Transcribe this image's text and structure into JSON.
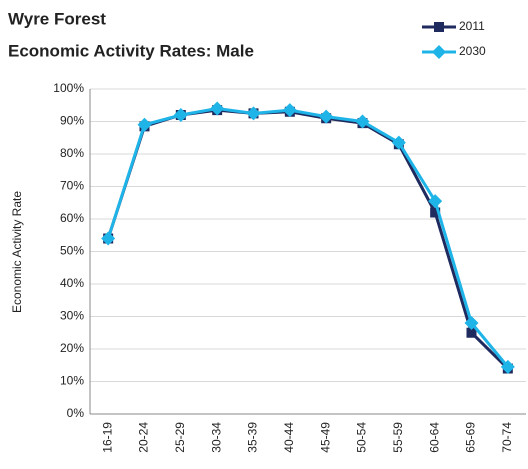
{
  "chart_data": {
    "type": "line",
    "title": "Wyre Forest",
    "subtitle": "Economic Activity Rates: Male",
    "y_label": "Economic Activity Rate",
    "categories": [
      "16-19",
      "20-24",
      "25-29",
      "30-34",
      "35-39",
      "40-44",
      "45-49",
      "50-54",
      "55-59",
      "60-64",
      "65-69",
      "70-74"
    ],
    "series": [
      {
        "name": "2011",
        "color": "#1f2a5e",
        "marker": "square",
        "values": [
          54,
          88.5,
          92,
          93.5,
          92.5,
          93,
          91,
          89.5,
          83,
          62,
          25,
          14
        ]
      },
      {
        "name": "2030",
        "color": "#1fb4e8",
        "marker": "diamond",
        "values": [
          54,
          89,
          92,
          94,
          92.5,
          93.5,
          91.5,
          90,
          83.5,
          65.5,
          28,
          14.5
        ]
      }
    ],
    "ylim": [
      0,
      100
    ],
    "yticks": [
      {
        "value": 0,
        "label": "0%"
      },
      {
        "value": 10,
        "label": "10%"
      },
      {
        "value": 20,
        "label": "20%"
      },
      {
        "value": 30,
        "label": "30%"
      },
      {
        "value": 40,
        "label": "40%"
      },
      {
        "value": 50,
        "label": "50%"
      },
      {
        "value": 60,
        "label": "60%"
      },
      {
        "value": 70,
        "label": "70%"
      },
      {
        "value": 80,
        "label": "80%"
      },
      {
        "value": 90,
        "label": "90%"
      },
      {
        "value": 100,
        "label": "100%"
      }
    ],
    "grid": true,
    "legend": "top-right"
  }
}
